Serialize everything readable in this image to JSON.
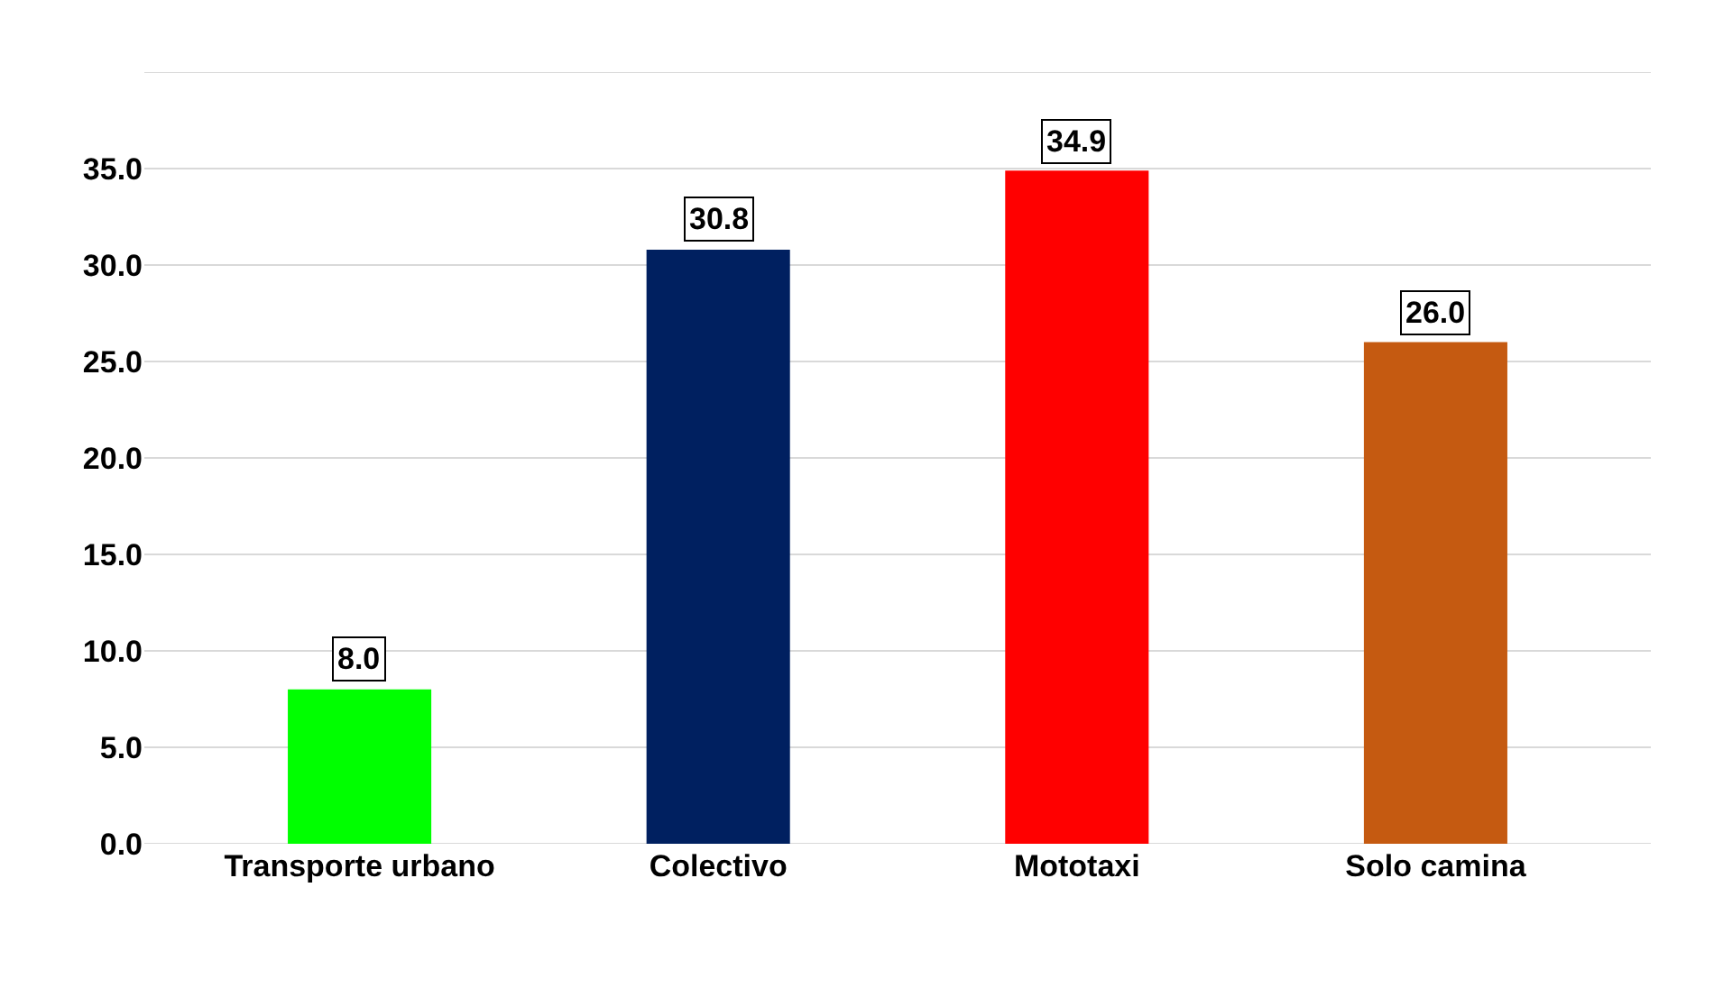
{
  "chart_data": {
    "type": "bar",
    "categories": [
      "Transporte urbano",
      "Colectivo",
      "Mototaxi",
      "Solo camina"
    ],
    "values": [
      8.0,
      30.8,
      34.9,
      26.0
    ],
    "colors": [
      "#00ff00",
      "#002060",
      "#ff0000",
      "#c55a11"
    ],
    "value_labels": [
      "8.0",
      "30.8",
      "34.9",
      "26.0"
    ],
    "ylim": [
      0,
      40
    ],
    "yticks": [
      {
        "value": 0,
        "label": "0.0"
      },
      {
        "value": 5,
        "label": "5.0"
      },
      {
        "value": 10,
        "label": "10.0"
      },
      {
        "value": 15,
        "label": "15.0"
      },
      {
        "value": 20,
        "label": "20.0"
      },
      {
        "value": 25,
        "label": "25.0"
      },
      {
        "value": 30,
        "label": "30.0"
      },
      {
        "value": 35,
        "label": "35.0"
      },
      {
        "value": 40,
        "label": null
      }
    ],
    "grid": "y"
  }
}
